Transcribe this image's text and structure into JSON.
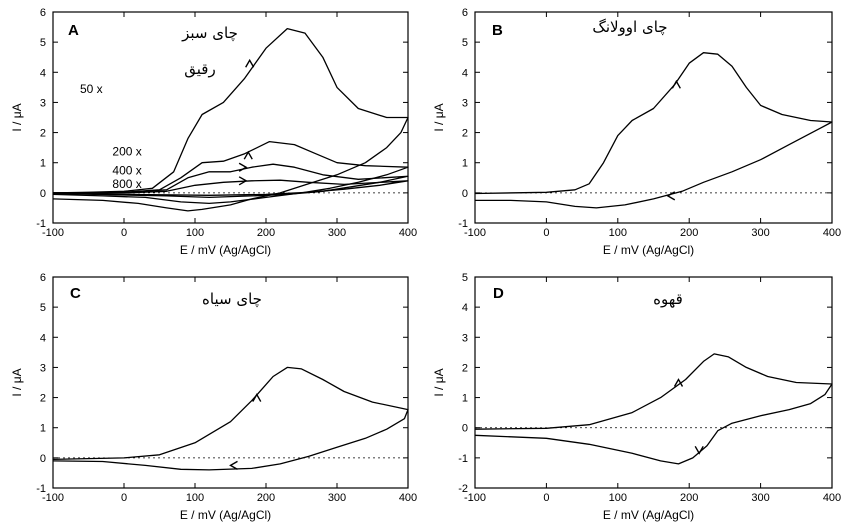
{
  "chart_data": [
    {
      "type": "line",
      "panel_letter": "A",
      "annotation": "چای سبز",
      "annotation2": "رقیق",
      "xlabel": "E / mV (Ag/AgCl)",
      "ylabel": "I / μA",
      "xlim": [
        -100,
        400
      ],
      "ylim": [
        -1,
        6
      ],
      "xticks": [
        -100,
        0,
        100,
        200,
        300,
        400
      ],
      "yticks": [
        -1,
        0,
        1,
        2,
        3,
        4,
        5,
        6
      ],
      "dilution_labels": [
        {
          "text": "50 x",
          "x": -30,
          "y": 3.45
        },
        {
          "text": "200 x",
          "x": 25,
          "y": 1.38
        },
        {
          "text": "400 x",
          "x": 25,
          "y": 0.75
        },
        {
          "text": "800 x",
          "x": 25,
          "y": 0.3
        }
      ],
      "series": [
        {
          "values": [
            [
              -100,
              0.0
            ],
            [
              -50,
              0.02
            ],
            [
              0,
              0.05
            ],
            [
              40,
              0.15
            ],
            [
              70,
              0.7
            ],
            [
              90,
              1.8
            ],
            [
              110,
              2.6
            ],
            [
              140,
              3.0
            ],
            [
              170,
              3.8
            ],
            [
              200,
              4.8
            ],
            [
              230,
              5.45
            ],
            [
              255,
              5.3
            ],
            [
              280,
              4.5
            ],
            [
              300,
              3.5
            ],
            [
              330,
              2.8
            ],
            [
              370,
              2.5
            ],
            [
              400,
              2.5
            ],
            [
              390,
              2.0
            ],
            [
              370,
              1.5
            ],
            [
              340,
              1.0
            ],
            [
              300,
              0.6
            ],
            [
              260,
              0.3
            ],
            [
              220,
              0.0
            ],
            [
              180,
              -0.2
            ],
            [
              150,
              -0.4
            ],
            [
              110,
              -0.55
            ],
            [
              90,
              -0.6
            ],
            [
              60,
              -0.5
            ],
            [
              20,
              -0.35
            ],
            [
              -30,
              -0.25
            ],
            [
              -100,
              -0.2
            ]
          ],
          "arrow": {
            "x": 177,
            "y": 4.4,
            "dir": "up"
          }
        },
        {
          "values": [
            [
              -100,
              0.0
            ],
            [
              0,
              0.02
            ],
            [
              50,
              0.1
            ],
            [
              80,
              0.5
            ],
            [
              110,
              1.0
            ],
            [
              140,
              1.05
            ],
            [
              170,
              1.3
            ],
            [
              205,
              1.7
            ],
            [
              240,
              1.6
            ],
            [
              270,
              1.3
            ],
            [
              300,
              1.0
            ],
            [
              340,
              0.9
            ],
            [
              400,
              0.85
            ],
            [
              370,
              0.6
            ],
            [
              330,
              0.35
            ],
            [
              290,
              0.15
            ],
            [
              250,
              0.0
            ],
            [
              200,
              -0.15
            ],
            [
              150,
              -0.3
            ],
            [
              120,
              -0.35
            ],
            [
              80,
              -0.3
            ],
            [
              30,
              -0.15
            ],
            [
              -30,
              -0.1
            ],
            [
              -100,
              -0.05
            ]
          ],
          "arrow": {
            "x": 175,
            "y": 1.35,
            "dir": "up"
          }
        },
        {
          "values": [
            [
              -100,
              0.0
            ],
            [
              0,
              0.01
            ],
            [
              60,
              0.1
            ],
            [
              90,
              0.5
            ],
            [
              120,
              0.7
            ],
            [
              150,
              0.7
            ],
            [
              180,
              0.85
            ],
            [
              210,
              0.95
            ],
            [
              240,
              0.85
            ],
            [
              280,
              0.6
            ],
            [
              330,
              0.45
            ],
            [
              400,
              0.55
            ],
            [
              360,
              0.35
            ],
            [
              320,
              0.2
            ],
            [
              280,
              0.05
            ],
            [
              230,
              -0.05
            ],
            [
              180,
              -0.1
            ],
            [
              120,
              -0.15
            ],
            [
              60,
              -0.1
            ],
            [
              -100,
              -0.02
            ]
          ],
          "arrow": {
            "x": 172,
            "y": 0.85,
            "dir": "right"
          }
        },
        {
          "values": [
            [
              -100,
              0.0
            ],
            [
              0,
              0.0
            ],
            [
              60,
              0.05
            ],
            [
              100,
              0.25
            ],
            [
              140,
              0.35
            ],
            [
              180,
              0.4
            ],
            [
              220,
              0.42
            ],
            [
              260,
              0.35
            ],
            [
              310,
              0.28
            ],
            [
              400,
              0.4
            ],
            [
              360,
              0.25
            ],
            [
              310,
              0.12
            ],
            [
              260,
              0.02
            ],
            [
              200,
              -0.05
            ],
            [
              120,
              -0.08
            ],
            [
              -100,
              -0.02
            ]
          ],
          "arrow": {
            "x": 172,
            "y": 0.4,
            "dir": "right"
          }
        }
      ]
    },
    {
      "type": "line",
      "panel_letter": "B",
      "annotation": "چای اوولانگ",
      "xlabel": "E / mV (Ag/AgCl)",
      "ylabel": "I / μA",
      "xlim": [
        -100,
        400
      ],
      "ylim": [
        -1,
        6
      ],
      "xticks": [
        -100,
        0,
        100,
        200,
        300,
        400
      ],
      "yticks": [
        -1,
        0,
        1,
        2,
        3,
        4,
        5,
        6
      ],
      "series": [
        {
          "values": [
            [
              -100,
              -0.02
            ],
            [
              0,
              0.02
            ],
            [
              40,
              0.1
            ],
            [
              60,
              0.3
            ],
            [
              80,
              1.0
            ],
            [
              100,
              1.9
            ],
            [
              120,
              2.4
            ],
            [
              150,
              2.8
            ],
            [
              180,
              3.6
            ],
            [
              200,
              4.3
            ],
            [
              220,
              4.65
            ],
            [
              240,
              4.6
            ],
            [
              260,
              4.2
            ],
            [
              280,
              3.5
            ],
            [
              300,
              2.9
            ],
            [
              330,
              2.6
            ],
            [
              370,
              2.4
            ],
            [
              400,
              2.35
            ],
            [
              380,
              2.1
            ],
            [
              340,
              1.6
            ],
            [
              300,
              1.1
            ],
            [
              260,
              0.7
            ],
            [
              220,
              0.35
            ],
            [
              190,
              0.05
            ],
            [
              150,
              -0.2
            ],
            [
              110,
              -0.4
            ],
            [
              70,
              -0.5
            ],
            [
              40,
              -0.45
            ],
            [
              0,
              -0.3
            ],
            [
              -50,
              -0.25
            ],
            [
              -100,
              -0.25
            ]
          ],
          "arrow": {
            "x": 182,
            "y": 3.7,
            "dir": "up"
          },
          "arrow2": {
            "x": 170,
            "y": -0.1,
            "dir": "left"
          }
        }
      ]
    },
    {
      "type": "line",
      "panel_letter": "C",
      "annotation": "چای سیاه",
      "xlabel": "E / mV (Ag/AgCl)",
      "ylabel": "I / μA",
      "xlim": [
        -100,
        400
      ],
      "ylim": [
        -1,
        6
      ],
      "xticks": [
        -100,
        0,
        100,
        200,
        300,
        400
      ],
      "yticks": [
        -1,
        0,
        1,
        2,
        3,
        4,
        5,
        6
      ],
      "series": [
        {
          "values": [
            [
              -100,
              -0.05
            ],
            [
              0,
              0.0
            ],
            [
              50,
              0.1
            ],
            [
              100,
              0.5
            ],
            [
              150,
              1.2
            ],
            [
              180,
              1.9
            ],
            [
              210,
              2.7
            ],
            [
              230,
              3.0
            ],
            [
              250,
              2.95
            ],
            [
              280,
              2.6
            ],
            [
              310,
              2.2
            ],
            [
              350,
              1.85
            ],
            [
              400,
              1.6
            ],
            [
              395,
              1.3
            ],
            [
              370,
              0.95
            ],
            [
              340,
              0.65
            ],
            [
              300,
              0.35
            ],
            [
              260,
              0.05
            ],
            [
              220,
              -0.2
            ],
            [
              180,
              -0.35
            ],
            [
              120,
              -0.4
            ],
            [
              80,
              -0.38
            ],
            [
              30,
              -0.25
            ],
            [
              -30,
              -0.12
            ],
            [
              -100,
              -0.1
            ]
          ],
          "arrow": {
            "x": 187,
            "y": 2.1,
            "dir": "up"
          },
          "arrow2": {
            "x": 150,
            "y": -0.25,
            "dir": "left"
          }
        }
      ]
    },
    {
      "type": "line",
      "panel_letter": "D",
      "annotation": "قهوه",
      "xlabel": "E / mV (Ag/AgCl)",
      "ylabel": "I / μA",
      "xlim": [
        -100,
        400
      ],
      "ylim": [
        -2,
        5
      ],
      "xticks": [
        -100,
        0,
        100,
        200,
        300,
        400
      ],
      "yticks": [
        -2,
        -1,
        0,
        1,
        2,
        3,
        4,
        5
      ],
      "series": [
        {
          "values": [
            [
              -100,
              -0.05
            ],
            [
              0,
              -0.02
            ],
            [
              60,
              0.1
            ],
            [
              120,
              0.5
            ],
            [
              160,
              1.0
            ],
            [
              195,
              1.6
            ],
            [
              220,
              2.2
            ],
            [
              235,
              2.45
            ],
            [
              255,
              2.35
            ],
            [
              280,
              2.0
            ],
            [
              310,
              1.7
            ],
            [
              350,
              1.5
            ],
            [
              400,
              1.45
            ],
            [
              390,
              1.1
            ],
            [
              370,
              0.8
            ],
            [
              340,
              0.6
            ],
            [
              300,
              0.4
            ],
            [
              260,
              0.15
            ],
            [
              240,
              -0.1
            ],
            [
              225,
              -0.6
            ],
            [
              205,
              -1.0
            ],
            [
              185,
              -1.2
            ],
            [
              160,
              -1.1
            ],
            [
              120,
              -0.85
            ],
            [
              60,
              -0.55
            ],
            [
              0,
              -0.35
            ],
            [
              -100,
              -0.25
            ]
          ],
          "arrow": {
            "x": 185,
            "y": 1.6,
            "dir": "up"
          },
          "arrow2": {
            "x": 214,
            "y": -0.85,
            "dir": "down"
          }
        }
      ]
    }
  ]
}
